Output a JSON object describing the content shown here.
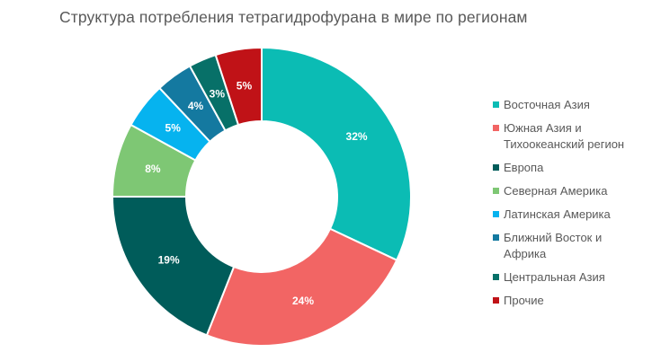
{
  "chart_data": {
    "type": "pie",
    "title": "Структура потребления тетрагидрофурана в мире по регионам",
    "donut": true,
    "legend_position": "right",
    "categories": [
      "Восточная Азия",
      "Южная Азия и Тихоокеанский регион",
      "Европа",
      "Северная Америка",
      "Латинская Америка",
      "Ближний Восток и Африка",
      "Центральная Азия",
      "Прочие"
    ],
    "values": [
      32,
      24,
      19,
      8,
      5,
      4,
      3,
      5
    ],
    "data_labels": [
      "32%",
      "24%",
      "19%",
      "8%",
      "5%",
      "4%",
      "3%",
      "5%"
    ],
    "colors": [
      "#0bbcb4",
      "#f26564",
      "#005c5a",
      "#7ec774",
      "#06b3ef",
      "#1479a0",
      "#077068",
      "#c01217"
    ],
    "legend_lines": [
      [
        "Восточная Азия"
      ],
      [
        "Южная Азия и",
        "Тихоокеанский регион"
      ],
      [
        "Европа"
      ],
      [
        "Северная Америка"
      ],
      [
        "Латинская Америка"
      ],
      [
        "Ближний Восток и",
        "Африка"
      ],
      [
        "Центральная Азия"
      ],
      [
        "Прочие"
      ]
    ]
  }
}
